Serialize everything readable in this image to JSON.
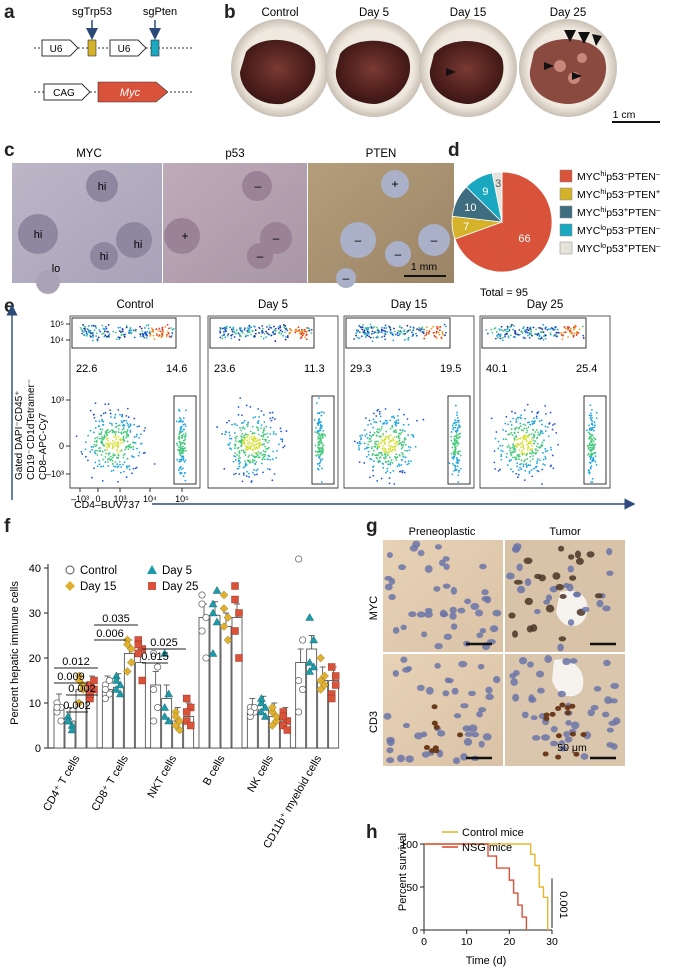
{
  "panels": {
    "a": "a",
    "b": "b",
    "c": "c",
    "d": "d",
    "e": "e",
    "f": "f",
    "g": "g",
    "h": "h"
  },
  "panel_a": {
    "sgTrp53": "sgTrp53",
    "sgPten": "sgPten",
    "u6_1": "U6",
    "u6_2": "U6",
    "cag": "CAG",
    "myc": "Myc"
  },
  "panel_b": {
    "labels": [
      "Control",
      "Day 5",
      "Day 15",
      "Day 25"
    ],
    "scale": "1 cm"
  },
  "panel_c": {
    "labels": [
      "MYC",
      "p53",
      "PTEN"
    ],
    "scale": "1 mm",
    "myc_marks": [
      "hi",
      "hi",
      "hi",
      "hi",
      "lo"
    ],
    "p53_marks": [
      "+",
      "–",
      "–",
      "–"
    ],
    "pten_marks": [
      "+",
      "–",
      "–",
      "–",
      "–"
    ]
  },
  "chart_data": [
    {
      "type": "pie",
      "panel": "d",
      "categories": [
        "MYC^hi p53^– PTEN^–",
        "MYC^hi p53^– PTEN^+",
        "MYC^hi p53^+ PTEN^–",
        "MYC^lo p53^– PTEN^–",
        "MYC^lo p53^+ PTEN^–"
      ],
      "values": [
        66,
        7,
        10,
        9,
        3
      ],
      "colors": [
        "#d9533b",
        "#d4b22a",
        "#3e6d80",
        "#19a8c0",
        "#e6e2dc"
      ],
      "total_label": "Total = 95"
    },
    {
      "type": "scatter",
      "panel": "e",
      "title_labels": [
        "Control",
        "Day 5",
        "Day 15",
        "Day 25"
      ],
      "ylabel_lines": [
        "Gated DAPI⁻CD45⁺",
        "CD19⁻CD1dTetramer⁻",
        "CD8–APC-Cy7"
      ],
      "xlabel": "CD4–BUV737",
      "y_ticks": [
        "10⁵",
        "10⁴",
        "10³",
        "0",
        "–10³"
      ],
      "x_ticks": [
        "–10³",
        "0",
        "10³",
        "10⁴",
        "10⁵"
      ],
      "cd8_percent": [
        22.6,
        23.6,
        29.3,
        40.1
      ],
      "cd4_percent": [
        14.6,
        11.3,
        19.5,
        25.4
      ]
    },
    {
      "type": "bar",
      "panel": "f",
      "ylabel": "Percent hepatic immune cells",
      "ylim": [
        0,
        40
      ],
      "y_ticks": [
        0,
        10,
        20,
        30,
        40
      ],
      "categories": [
        "CD4⁺ T cells",
        "CD8⁺ T cells",
        "NKT cells",
        "B cells",
        "NK cells",
        "CD11b⁺ myeloid cells"
      ],
      "series": [
        {
          "name": "Control",
          "color": "#ffffff",
          "marker": "circle",
          "values": [
            9,
            13,
            14,
            29,
            8,
            19
          ]
        },
        {
          "name": "Day 5",
          "color": "#1f9aa8",
          "marker": "triangle",
          "values": [
            6,
            13.5,
            11,
            29.5,
            8.5,
            22
          ]
        },
        {
          "name": "Day 15",
          "color": "#e0b12e",
          "marker": "diamond",
          "values": [
            13,
            21,
            6,
            27,
            7,
            15
          ]
        },
        {
          "name": "Day 25",
          "color": "#d9533b",
          "marker": "square",
          "values": [
            13,
            19,
            7,
            29,
            6,
            15
          ]
        }
      ],
      "points": {
        "Control": [
          [
            10,
            9,
            8,
            6,
            9
          ],
          [
            14,
            12,
            13,
            15,
            11
          ],
          [
            21,
            18,
            13,
            9,
            6
          ],
          [
            32,
            29,
            26,
            20,
            34
          ],
          [
            9,
            8,
            7,
            9,
            8
          ],
          [
            42,
            24,
            15,
            13,
            8
          ]
        ],
        "Day 5": [
          [
            7,
            5,
            6,
            4,
            6
          ],
          [
            16,
            14,
            13,
            12,
            15
          ],
          [
            21,
            12,
            9,
            6,
            7
          ],
          [
            30,
            28,
            21,
            35,
            32
          ],
          [
            10,
            9,
            8,
            7,
            11
          ],
          [
            29,
            24,
            19,
            18,
            17
          ]
        ],
        "Day 15": [
          [
            16,
            14,
            10,
            13,
            15
          ],
          [
            24,
            22,
            23,
            19,
            17
          ],
          [
            8,
            6,
            5,
            4,
            7
          ],
          [
            34,
            29,
            27,
            24,
            31
          ],
          [
            8,
            6,
            5,
            7,
            9
          ],
          [
            20,
            14,
            13,
            16,
            15
          ]
        ],
        "Day 25": [
          [
            14,
            13,
            11,
            15,
            12
          ],
          [
            24,
            22,
            23,
            15,
            21
          ],
          [
            11,
            9,
            6,
            5,
            8
          ],
          [
            36,
            30,
            26,
            20,
            33
          ],
          [
            8,
            6,
            5,
            4,
            7
          ],
          [
            18,
            14,
            12,
            16,
            11
          ]
        ]
      },
      "annotations": [
        "0.012",
        "0.009",
        "0.002",
        "0.002",
        "0.035",
        "0.006",
        "0.025",
        "0.015"
      ]
    },
    {
      "type": "line",
      "panel": "h",
      "ylabel": "Percent survival",
      "xlabel": "Time (d)",
      "xlim": [
        0,
        30
      ],
      "ylim": [
        0,
        100
      ],
      "x_ticks": [
        0,
        10,
        20,
        30
      ],
      "y_ticks": [
        0,
        50,
        100
      ],
      "series": [
        {
          "name": "Control mice",
          "color": "#e6b72f",
          "x": [
            0,
            25,
            25,
            26,
            26,
            27,
            27,
            28,
            28,
            29,
            29
          ],
          "y": [
            100,
            100,
            88,
            88,
            75,
            75,
            50,
            50,
            38,
            38,
            0
          ]
        },
        {
          "name": "NSG mice",
          "color": "#d9533b",
          "x": [
            0,
            15,
            15,
            17,
            17,
            20,
            20,
            21,
            21,
            22,
            22,
            23,
            23,
            24,
            24
          ],
          "y": [
            100,
            100,
            86,
            86,
            72,
            72,
            58,
            58,
            43,
            43,
            29,
            29,
            15,
            15,
            0
          ]
        }
      ],
      "pvalue": "0.001"
    }
  ],
  "panel_g": {
    "col_labels": [
      "Preneoplastic",
      "Tumor"
    ],
    "row_labels": [
      "MYC",
      "CD3"
    ],
    "scale": "50 μm"
  }
}
